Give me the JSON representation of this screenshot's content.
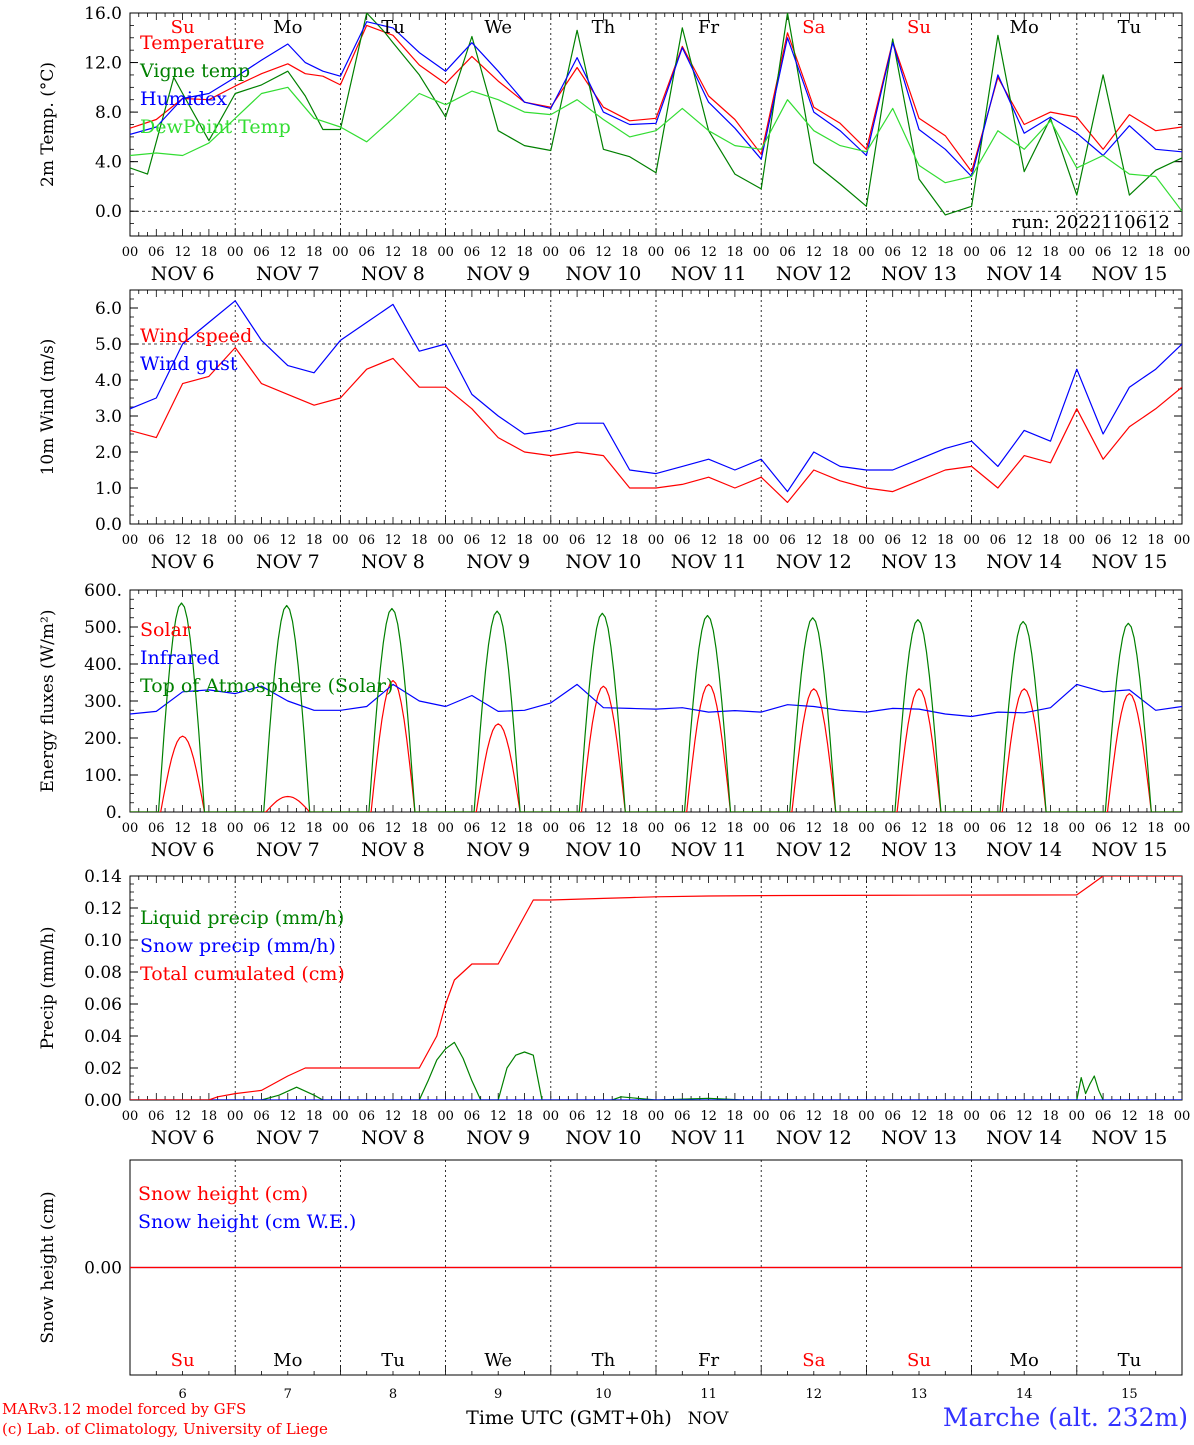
{
  "meta": {
    "run": "run: 2022110612",
    "footer_model": "MARv3.12 model forced by GFS",
    "footer_lab": "(c) Lab. of Climatology, University of Liege",
    "xaxis_title": "Time UTC (GMT+0h)",
    "xaxis_month": "NOV",
    "location": "Marche (alt. 232m)",
    "colors": {
      "red": "#ff0000",
      "green": "#008000",
      "blue": "#0000ff",
      "lightgreen": "#33dd33",
      "purple": "#800080",
      "location": "#3333ff"
    }
  },
  "days": {
    "weekday_labels": [
      "Su",
      "Mo",
      "Tu",
      "We",
      "Th",
      "Fr",
      "Sa",
      "Su",
      "Mo",
      "Tu"
    ],
    "weekday_red": [
      true,
      false,
      false,
      false,
      false,
      false,
      true,
      true,
      false,
      false
    ],
    "date_labels": [
      "NOV  6",
      "NOV  7",
      "NOV  8",
      "NOV  9",
      "NOV 10",
      "NOV 11",
      "NOV 12",
      "NOV 13",
      "NOV 14",
      "NOV 15"
    ],
    "day_numbers": [
      "6",
      "7",
      "8",
      "9",
      "10",
      "11",
      "12",
      "13",
      "14",
      "15"
    ],
    "hour_ticks": [
      "00",
      "06",
      "12",
      "18"
    ],
    "final_tick": "00"
  },
  "chart_data": [
    {
      "id": "temperature",
      "type": "line",
      "ylabel": "2m Temp. (°C)",
      "ylim": [
        -2.0,
        16.0
      ],
      "yticks": [
        "0.0",
        "4.0",
        "8.0",
        "12.0",
        "16.0"
      ],
      "ytick_values": [
        0,
        4,
        8,
        12,
        16
      ],
      "ref_lines": [
        0
      ],
      "x_unit": "hours since NOV 6 00 UTC",
      "series": [
        {
          "name": "Temperature",
          "color": "#ff0000",
          "x": [
            0,
            6,
            12,
            18,
            24,
            30,
            36,
            40,
            44,
            48,
            54,
            60,
            66,
            72,
            78,
            84,
            90,
            96,
            102,
            108,
            114,
            120,
            126,
            132,
            138,
            144,
            150,
            156,
            162,
            168,
            174,
            180,
            186,
            192,
            198,
            204,
            210,
            216,
            222,
            228,
            234,
            240
          ],
          "y": [
            6.7,
            7.4,
            9.1,
            9.0,
            10.1,
            11.1,
            11.9,
            11.1,
            10.9,
            10.2,
            15.0,
            14.2,
            11.8,
            10.3,
            12.5,
            10.5,
            8.8,
            8.4,
            11.6,
            8.4,
            7.3,
            7.5,
            13.3,
            9.3,
            7.4,
            4.6,
            14.4,
            8.4,
            7.1,
            5.0,
            13.7,
            7.5,
            6.1,
            3.2,
            10.8,
            7.0,
            8.0,
            7.6,
            5.0,
            7.8,
            6.5,
            6.8
          ]
        },
        {
          "name": "Vigne temp",
          "color": "#008000",
          "x": [
            0,
            4,
            10,
            12,
            18,
            24,
            30,
            36,
            40,
            44,
            48,
            54,
            58,
            60,
            66,
            72,
            78,
            84,
            90,
            96,
            102,
            108,
            114,
            120,
            126,
            132,
            138,
            144,
            150,
            156,
            162,
            168,
            174,
            180,
            186,
            192,
            198,
            204,
            210,
            216,
            222,
            228,
            234,
            240
          ],
          "y": [
            3.5,
            3.0,
            10.8,
            9.5,
            5.7,
            9.5,
            10.2,
            11.3,
            9.3,
            6.6,
            6.6,
            16.0,
            14.5,
            13.6,
            11.0,
            7.6,
            14.1,
            6.5,
            5.3,
            4.9,
            14.6,
            5.0,
            4.4,
            3.1,
            14.8,
            6.5,
            3.0,
            1.8,
            16.0,
            3.9,
            2.2,
            0.4,
            13.9,
            2.6,
            -0.3,
            0.4,
            14.2,
            3.2,
            7.5,
            1.3,
            11.0,
            1.3,
            3.3,
            4.3
          ]
        },
        {
          "name": "Humidex",
          "color": "#0000ff",
          "x": [
            0,
            6,
            12,
            18,
            24,
            30,
            36,
            40,
            44,
            48,
            54,
            60,
            66,
            72,
            78,
            84,
            90,
            96,
            102,
            108,
            114,
            120,
            126,
            132,
            138,
            144,
            150,
            156,
            162,
            168,
            174,
            180,
            186,
            192,
            198,
            204,
            210,
            216,
            222,
            228,
            234,
            240
          ],
          "y": [
            6.2,
            6.8,
            9.1,
            9.5,
            10.8,
            12.2,
            13.5,
            12.0,
            11.3,
            10.9,
            15.3,
            14.8,
            12.8,
            11.3,
            13.6,
            11.3,
            8.8,
            8.3,
            12.4,
            8.0,
            7.0,
            7.1,
            13.2,
            8.8,
            6.7,
            4.2,
            14.0,
            8.0,
            6.5,
            4.5,
            13.6,
            6.6,
            5.0,
            2.8,
            11.0,
            6.3,
            7.6,
            6.3,
            4.5,
            6.9,
            5.0,
            4.8
          ]
        },
        {
          "name": "DewPoint Temp",
          "color": "#33dd33",
          "x": [
            0,
            6,
            12,
            18,
            24,
            30,
            36,
            42,
            48,
            54,
            60,
            66,
            72,
            78,
            84,
            90,
            96,
            102,
            108,
            114,
            120,
            126,
            132,
            138,
            144,
            150,
            156,
            162,
            168,
            174,
            180,
            186,
            192,
            198,
            204,
            210,
            216,
            222,
            228,
            234,
            240
          ],
          "y": [
            4.5,
            4.7,
            4.5,
            5.5,
            7.5,
            9.5,
            10.0,
            7.5,
            6.8,
            5.6,
            7.5,
            9.5,
            8.6,
            9.7,
            9.0,
            8.0,
            7.8,
            9.0,
            7.4,
            6.0,
            6.5,
            8.3,
            6.5,
            5.3,
            5.0,
            9.0,
            6.5,
            5.3,
            4.8,
            8.3,
            3.7,
            2.3,
            2.8,
            6.5,
            5.0,
            7.3,
            3.5,
            4.5,
            3.0,
            2.8,
            0.0
          ]
        }
      ],
      "legend": [
        "Temperature",
        "Vigne temp",
        "Humidex",
        "DewPoint Temp"
      ]
    },
    {
      "id": "wind",
      "type": "line",
      "ylabel": "10m Wind (m/s)",
      "ylim": [
        0.0,
        6.5
      ],
      "yticks": [
        "0.0",
        "1.0",
        "2.0",
        "3.0",
        "4.0",
        "5.0",
        "6.0"
      ],
      "ytick_values": [
        0,
        1,
        2,
        3,
        4,
        5,
        6
      ],
      "ref_lines": [
        5
      ],
      "x_unit": "hours since NOV 6 00 UTC",
      "series": [
        {
          "name": "Wind speed",
          "color": "#ff0000",
          "x": [
            0,
            6,
            12,
            18,
            24,
            30,
            36,
            42,
            48,
            54,
            60,
            66,
            72,
            78,
            84,
            90,
            96,
            102,
            108,
            114,
            120,
            126,
            132,
            138,
            144,
            150,
            156,
            162,
            168,
            174,
            180,
            186,
            192,
            198,
            204,
            210,
            216,
            222,
            228,
            234,
            240
          ],
          "y": [
            2.6,
            2.4,
            3.9,
            4.1,
            4.9,
            3.9,
            3.6,
            3.3,
            3.5,
            4.3,
            4.6,
            3.8,
            3.8,
            3.2,
            2.4,
            2.0,
            1.9,
            2.0,
            1.9,
            1.0,
            1.0,
            1.1,
            1.3,
            1.0,
            1.3,
            0.6,
            1.5,
            1.2,
            1.0,
            0.9,
            1.2,
            1.5,
            1.6,
            1.0,
            1.9,
            1.7,
            3.2,
            1.8,
            2.7,
            3.2,
            3.8
          ]
        },
        {
          "name": "Wind gust",
          "color": "#0000ff",
          "x": [
            0,
            6,
            12,
            18,
            24,
            30,
            36,
            42,
            48,
            54,
            60,
            66,
            72,
            78,
            84,
            90,
            96,
            102,
            108,
            114,
            120,
            126,
            132,
            138,
            144,
            150,
            156,
            162,
            168,
            174,
            180,
            186,
            192,
            198,
            204,
            210,
            216,
            222,
            228,
            234,
            240
          ],
          "y": [
            3.2,
            3.5,
            5.0,
            5.6,
            6.2,
            5.1,
            4.4,
            4.2,
            5.1,
            5.6,
            6.1,
            4.8,
            5.0,
            3.6,
            3.0,
            2.5,
            2.6,
            2.8,
            2.8,
            1.5,
            1.4,
            1.6,
            1.8,
            1.5,
            1.8,
            0.9,
            2.0,
            1.6,
            1.5,
            1.5,
            1.8,
            2.1,
            2.3,
            1.6,
            2.6,
            2.3,
            4.3,
            2.5,
            3.8,
            4.3,
            5.0
          ]
        }
      ],
      "legend": [
        "Wind speed",
        "Wind gust"
      ]
    },
    {
      "id": "energy",
      "type": "line",
      "ylabel": "Energy fluxes (W/m²)",
      "ylim": [
        0,
        600
      ],
      "yticks": [
        "0.",
        "100.",
        "200.",
        "300.",
        "400.",
        "500.",
        "600."
      ],
      "ytick_values": [
        0,
        100,
        200,
        300,
        400,
        500,
        600
      ],
      "ref_lines": [],
      "x_unit": "hours since NOV 6 00 UTC",
      "series": [
        {
          "name": "Solar",
          "color": "#ff0000",
          "day_peaks": [
            205,
            42,
            355,
            238,
            340,
            345,
            333,
            333,
            333,
            320
          ],
          "sunrise_hour": 7,
          "sunset_hour": 17
        },
        {
          "name": "Infrared",
          "color": "#0000ff",
          "x": [
            0,
            6,
            12,
            18,
            24,
            30,
            36,
            42,
            48,
            54,
            60,
            66,
            72,
            78,
            84,
            90,
            96,
            102,
            108,
            114,
            120,
            126,
            132,
            138,
            144,
            150,
            156,
            162,
            168,
            174,
            180,
            186,
            192,
            198,
            204,
            210,
            216,
            222,
            228,
            234,
            240
          ],
          "y": [
            265,
            272,
            325,
            330,
            320,
            340,
            300,
            275,
            275,
            285,
            345,
            300,
            285,
            315,
            272,
            275,
            295,
            345,
            282,
            280,
            278,
            282,
            270,
            274,
            270,
            290,
            285,
            275,
            270,
            280,
            278,
            265,
            258,
            270,
            268,
            282,
            345,
            325,
            330,
            275,
            285
          ]
        },
        {
          "name": "Top of Atmosphere (Solar)",
          "color": "#008000",
          "day_peaks": [
            565,
            558,
            550,
            543,
            537,
            531,
            525,
            520,
            515,
            510
          ],
          "sunrise_hour": 6.5,
          "sunset_hour": 17
        }
      ],
      "legend": [
        "Solar",
        "Infrared",
        "Top of Atmosphere (Solar)"
      ]
    },
    {
      "id": "precip",
      "type": "line",
      "ylabel": "Precip (mm/h)",
      "ylim": [
        0,
        0.14
      ],
      "yticks": [
        "0.00",
        "0.02",
        "0.04",
        "0.06",
        "0.08",
        "0.10",
        "0.12",
        "0.14"
      ],
      "ytick_values": [
        0,
        0.02,
        0.04,
        0.06,
        0.08,
        0.1,
        0.12,
        0.14
      ],
      "ref_lines": [],
      "x_unit": "hours since NOV 6 00 UTC",
      "series": [
        {
          "name": "Liquid precip (mm/h)",
          "color": "#008000",
          "x": [
            0,
            20,
            24,
            30,
            34,
            38,
            42,
            44,
            48,
            66,
            68,
            70,
            72,
            74,
            76,
            78,
            80,
            84,
            86,
            88,
            90,
            92,
            94,
            100,
            110,
            112,
            120,
            132,
            140,
            216,
            217,
            218,
            219,
            220,
            221,
            222,
            240
          ],
          "y": [
            0,
            0,
            0,
            0,
            0.003,
            0.008,
            0.003,
            0,
            0,
            0,
            0.012,
            0.025,
            0.032,
            0.036,
            0.026,
            0.012,
            0,
            0,
            0.02,
            0.028,
            0.03,
            0.028,
            0,
            0,
            0,
            0.002,
            0,
            0.001,
            0,
            0,
            0.014,
            0.004,
            0.01,
            0.015,
            0.006,
            0,
            0
          ]
        },
        {
          "name": "Snow precip (mm/h)",
          "color": "#0000ff",
          "x": [
            0,
            240
          ],
          "y": [
            0,
            0
          ]
        },
        {
          "name": "Total cumulated (cm)",
          "color": "#ff0000",
          "x": [
            0,
            18,
            20,
            24,
            30,
            36,
            40,
            42,
            48,
            60,
            66,
            70,
            72,
            74,
            78,
            84,
            86,
            90,
            92,
            96,
            108,
            114,
            120,
            132,
            150,
            180,
            204,
            216,
            219,
            222,
            240
          ],
          "y": [
            0,
            0,
            0.002,
            0.004,
            0.006,
            0.015,
            0.02,
            0.02,
            0.02,
            0.02,
            0.02,
            0.04,
            0.06,
            0.075,
            0.085,
            0.085,
            0.095,
            0.115,
            0.125,
            0.125,
            0.126,
            0.1265,
            0.127,
            0.1275,
            0.1278,
            0.128,
            0.1281,
            0.1282,
            0.134,
            0.14,
            0.14
          ]
        }
      ],
      "legend": [
        "Liquid precip (mm/h)",
        "Snow precip (mm/h)",
        "Total cumulated (cm)"
      ]
    },
    {
      "id": "snow",
      "type": "line",
      "ylabel": "Snow height (cm)",
      "ylim": [
        -1,
        1
      ],
      "yticks": [
        "0.00"
      ],
      "ytick_values": [
        0
      ],
      "ref_lines": [],
      "x_unit": "hours since NOV 6 00 UTC",
      "series": [
        {
          "name": "Snow height (cm)",
          "color": "#ff0000",
          "x": [
            0,
            240
          ],
          "y": [
            0,
            0
          ]
        },
        {
          "name": "Snow height (cm W.E.)",
          "color": "#0000ff",
          "x": [
            0,
            240
          ],
          "y": [
            0,
            0
          ]
        }
      ],
      "legend": [
        "Snow height (cm)",
        "Snow height (cm W.E.)"
      ]
    }
  ]
}
